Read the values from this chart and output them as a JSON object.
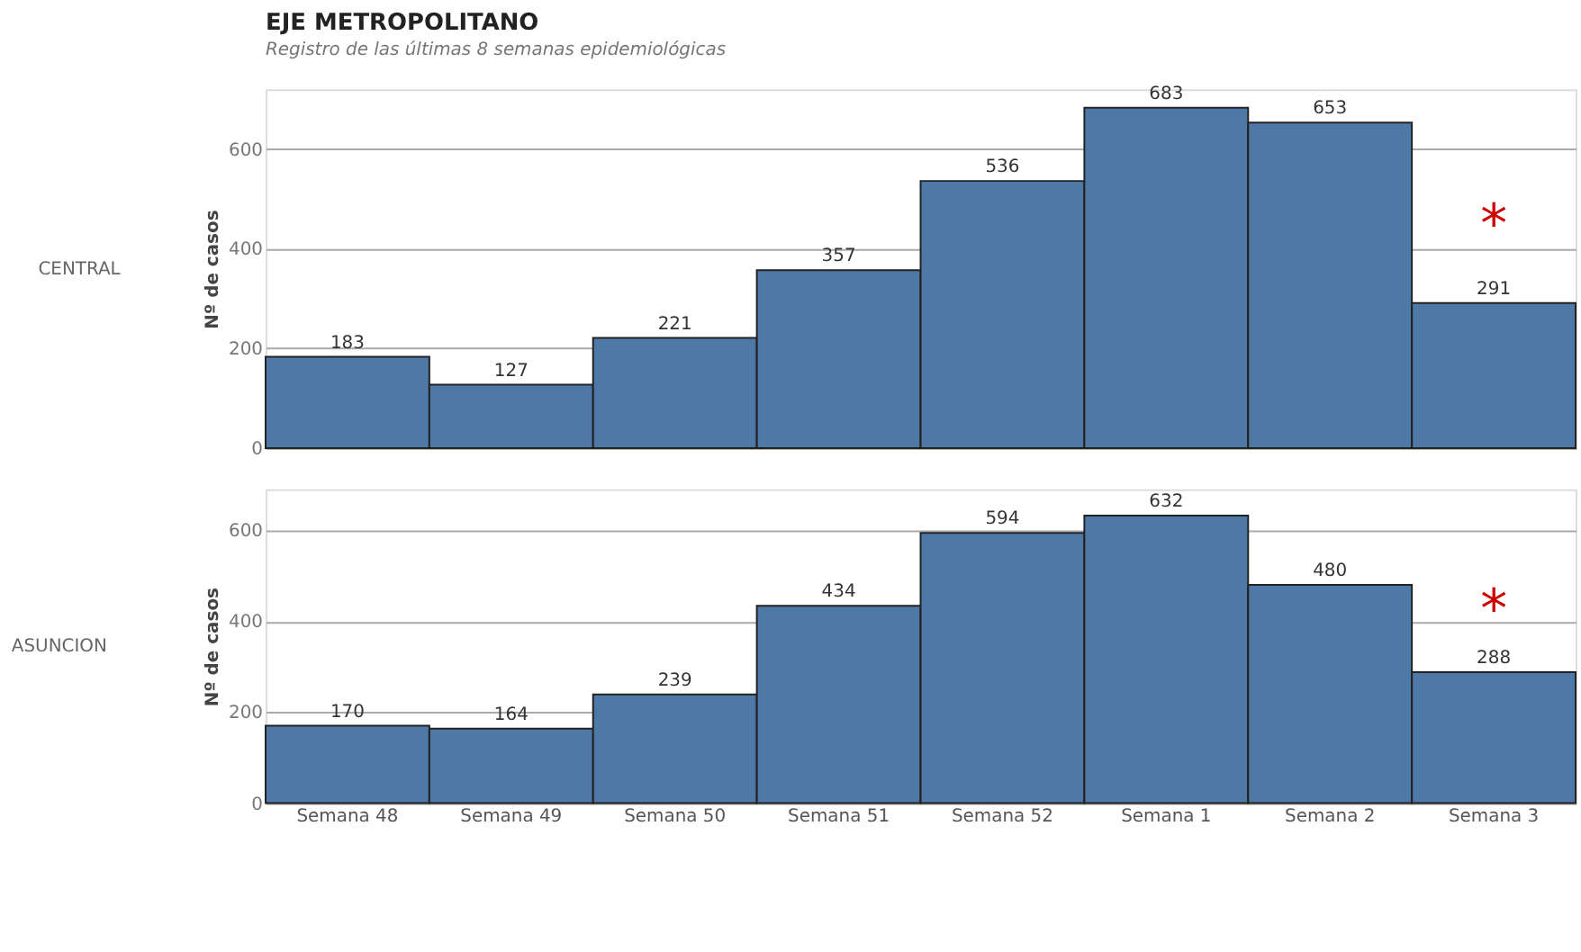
{
  "chart_data": [
    {
      "type": "bar",
      "title": "EJE METROPOLITANO",
      "subtitle": "Registro de las últimas 8 semanas epidemiológicas",
      "ylabel": "Nº de casos",
      "categories": [
        "Semana 48",
        "Semana 49",
        "Semana 50",
        "Semana 51",
        "Semana 52",
        "Semana 1",
        "Semana 2",
        "Semana 3"
      ],
      "values": [
        183,
        127,
        221,
        357,
        536,
        683,
        653,
        291
      ],
      "color": "#4e79a7",
      "ylim": [
        0,
        720
      ],
      "yticks": [
        0,
        200,
        400,
        600
      ],
      "grid": "y",
      "data_labels": true,
      "tick_labels": "y",
      "annotations": [
        "CENTRAL",
        "*"
      ]
    },
    {
      "type": "bar",
      "ylabel": "Nº de casos",
      "categories": [
        "Semana 48",
        "Semana 49",
        "Semana 50",
        "Semana 51",
        "Semana 52",
        "Semana 1",
        "Semana 2",
        "Semana 3"
      ],
      "values": [
        170,
        164,
        239,
        434,
        594,
        632,
        480,
        288
      ],
      "color": "#4e79a7",
      "ylim": [
        0,
        690
      ],
      "yticks": [
        0,
        200,
        400,
        600
      ],
      "grid": "y",
      "data_labels": true,
      "annotations": [
        "ASUNCION",
        "*"
      ]
    }
  ]
}
